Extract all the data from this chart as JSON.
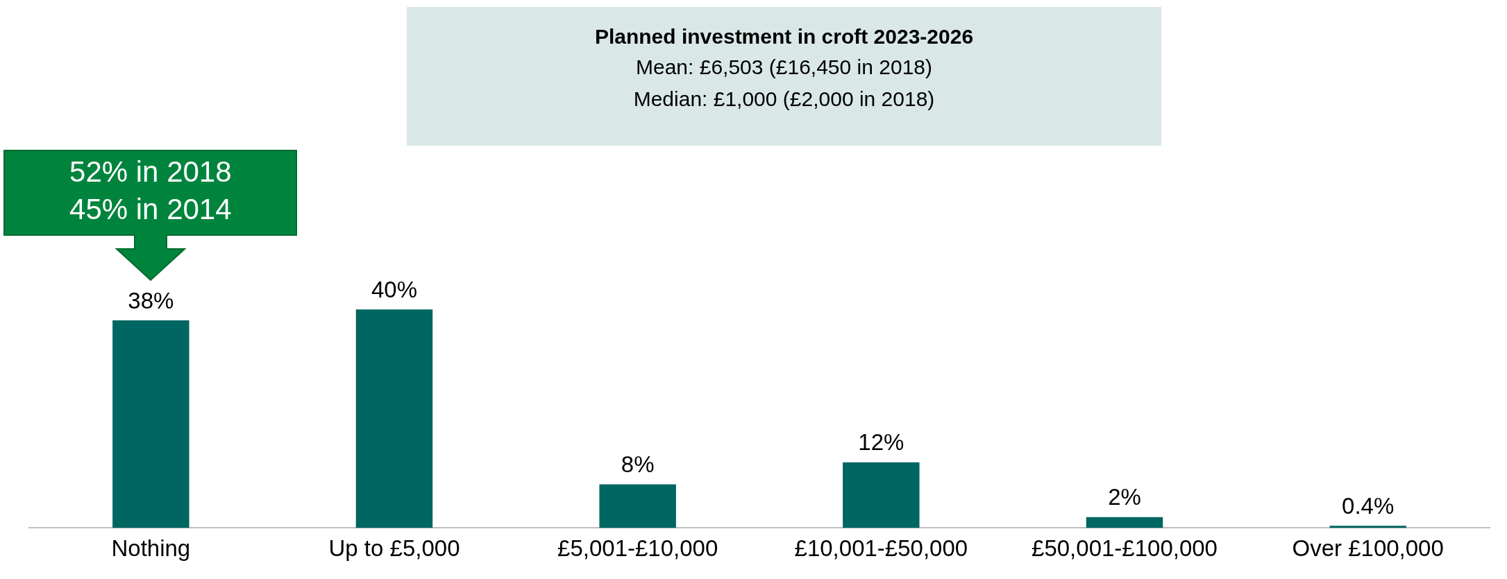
{
  "chart_data": {
    "type": "bar",
    "title": "Planned investment in croft 2023-2026",
    "subtitle": "Mean: £6,503 (£16,450 in 2018)\nMedian: £1,000 (£2,000 in 2018)",
    "categories": [
      "Nothing",
      "Up to £5,000",
      "£5,001-£10,000",
      "£10,001-£50,000",
      "£50,001-£100,000",
      "Over £100,000"
    ],
    "values": [
      38,
      40,
      8,
      12,
      2,
      0.4
    ],
    "value_labels": [
      "38%",
      "40%",
      "8%",
      "12%",
      "2%",
      "0.4%"
    ],
    "color": "#006661",
    "grid": false,
    "legend": false,
    "annotations": [
      "52% in 2018\n45% in 2014"
    ]
  }
}
